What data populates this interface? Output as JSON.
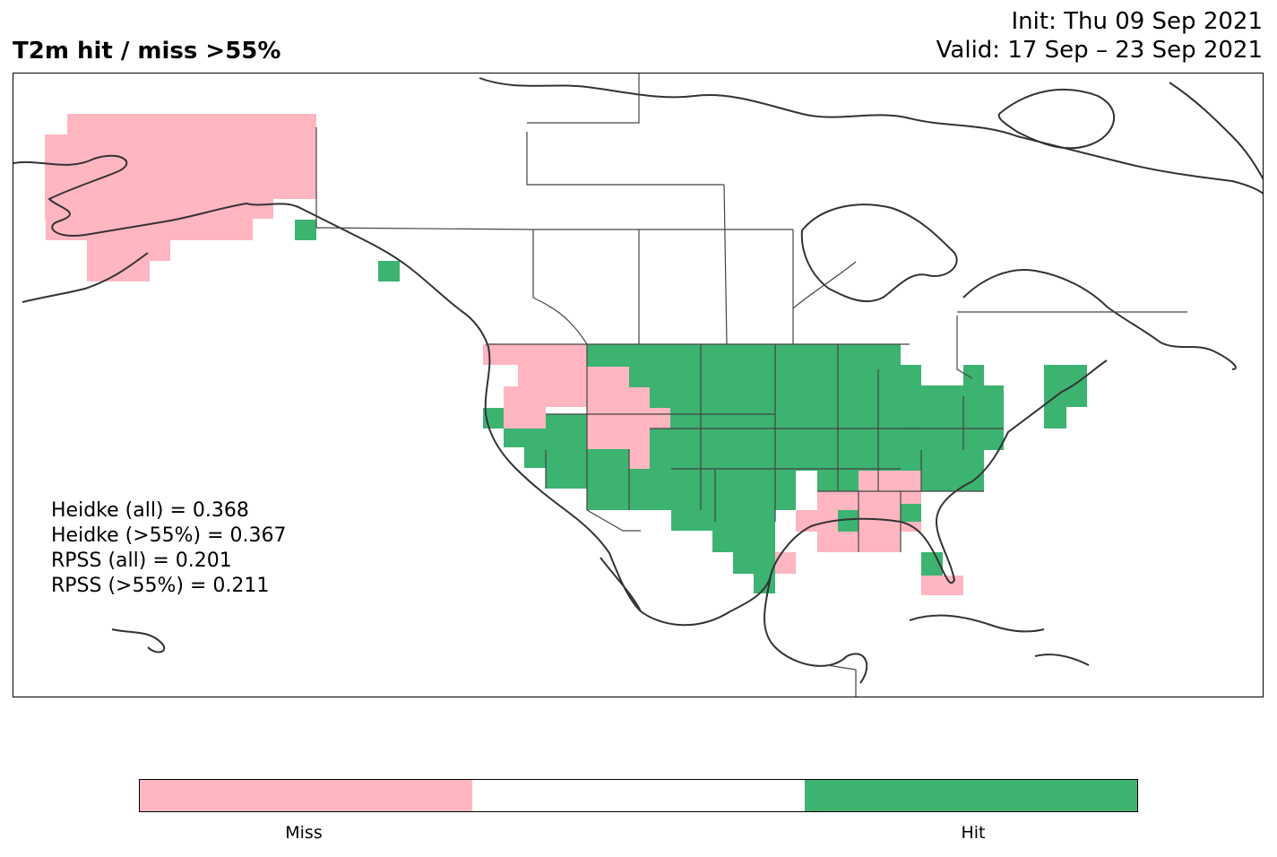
{
  "title": "T2m hit / miss  >55%",
  "init_line": "Init: Thu 09 Sep 2021",
  "valid_line": "Valid: 17 Sep – 23 Sep 2021",
  "stats": [
    "Heidke (all) = 0.368",
    "Heidke (>55%) = 0.367",
    "RPSS (all) = 0.201",
    "RPSS (>55%) = 0.211"
  ],
  "colors": {
    "miss": "#ffb6c1",
    "neutral": "#ffffff",
    "hit": "#3cb371",
    "coast": "#333333",
    "border": "#444444"
  },
  "colorbar": {
    "segments": [
      "miss",
      "neutral",
      "hit"
    ],
    "labels": [
      "Miss",
      "Hit"
    ]
  }
}
